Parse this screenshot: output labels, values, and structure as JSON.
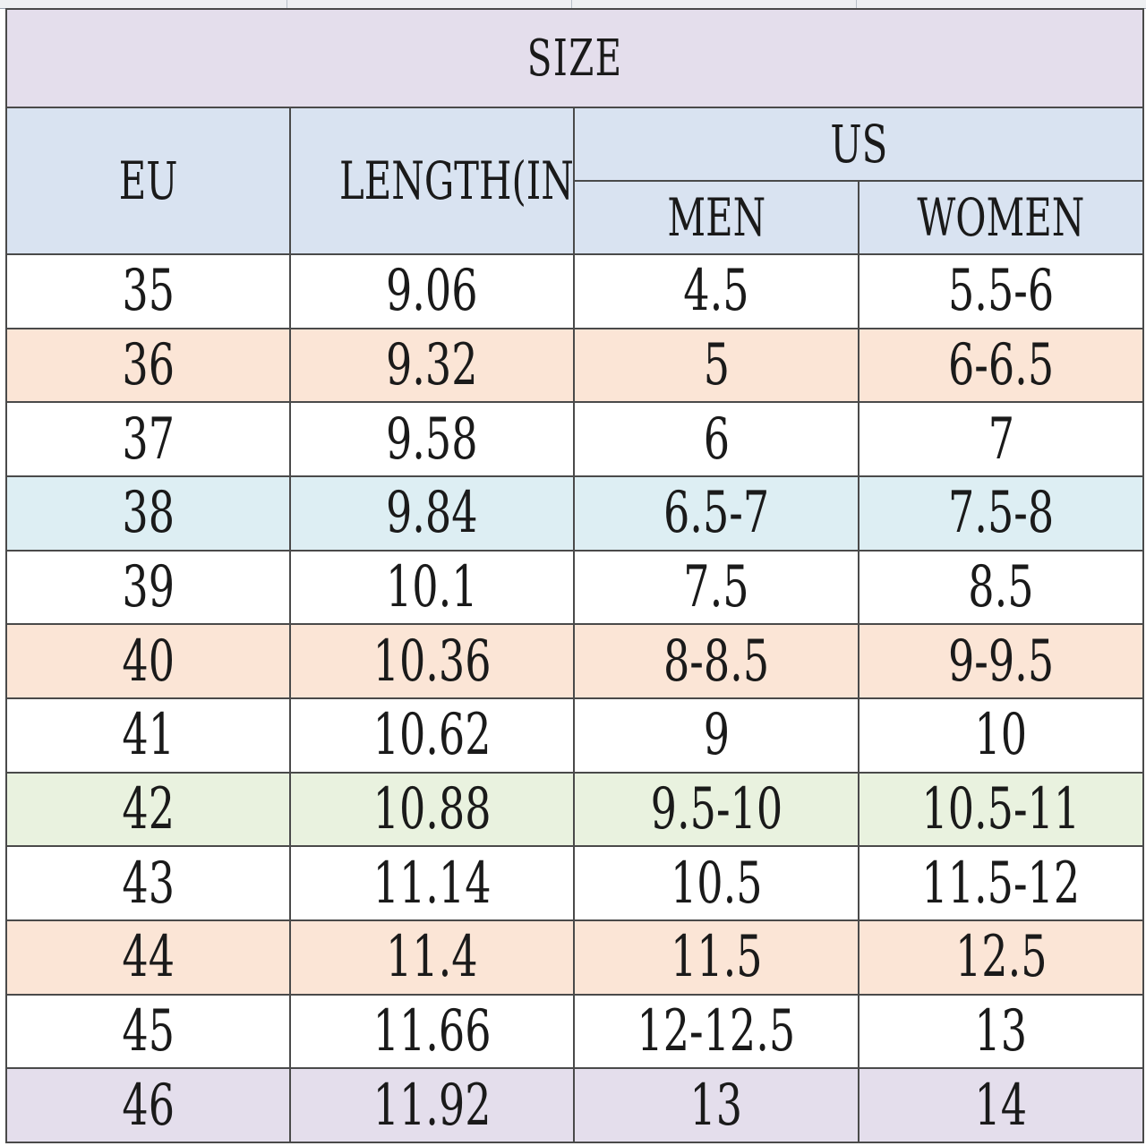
{
  "title": "SIZE",
  "headers": {
    "eu": "EU",
    "length": "LENGTH(IN)",
    "us": "US",
    "men": "MEN",
    "women": "WOMEN"
  },
  "row_colors": {
    "white": "#ffffff",
    "peach": "#fbe5d6",
    "blue": "#ddeef3",
    "green": "#e9f2df",
    "lavender": "#e4deec"
  },
  "rows": [
    {
      "eu": "35",
      "length": "9.06",
      "men": "4.5",
      "women": "5.5-6",
      "color": "white"
    },
    {
      "eu": "36",
      "length": "9.32",
      "men": "5",
      "women": "6-6.5",
      "color": "peach"
    },
    {
      "eu": "37",
      "length": "9.58",
      "men": "6",
      "women": "7",
      "color": "white"
    },
    {
      "eu": "38",
      "length": "9.84",
      "men": "6.5-7",
      "women": "7.5-8",
      "color": "blue"
    },
    {
      "eu": "39",
      "length": "10.1",
      "men": "7.5",
      "women": "8.5",
      "color": "white"
    },
    {
      "eu": "40",
      "length": "10.36",
      "men": "8-8.5",
      "women": "9-9.5",
      "color": "peach"
    },
    {
      "eu": "41",
      "length": "10.62",
      "men": "9",
      "women": "10",
      "color": "white"
    },
    {
      "eu": "42",
      "length": "10.88",
      "men": "9.5-10",
      "women": "10.5-11",
      "color": "green"
    },
    {
      "eu": "43",
      "length": "11.14",
      "men": "10.5",
      "women": "11.5-12",
      "color": "white"
    },
    {
      "eu": "44",
      "length": "11.4",
      "men": "11.5",
      "women": "12.5",
      "color": "peach"
    },
    {
      "eu": "45",
      "length": "11.66",
      "men": "12-12.5",
      "women": "13",
      "color": "white"
    },
    {
      "eu": "46",
      "length": "11.92",
      "men": "13",
      "women": "14",
      "color": "lavender"
    }
  ]
}
